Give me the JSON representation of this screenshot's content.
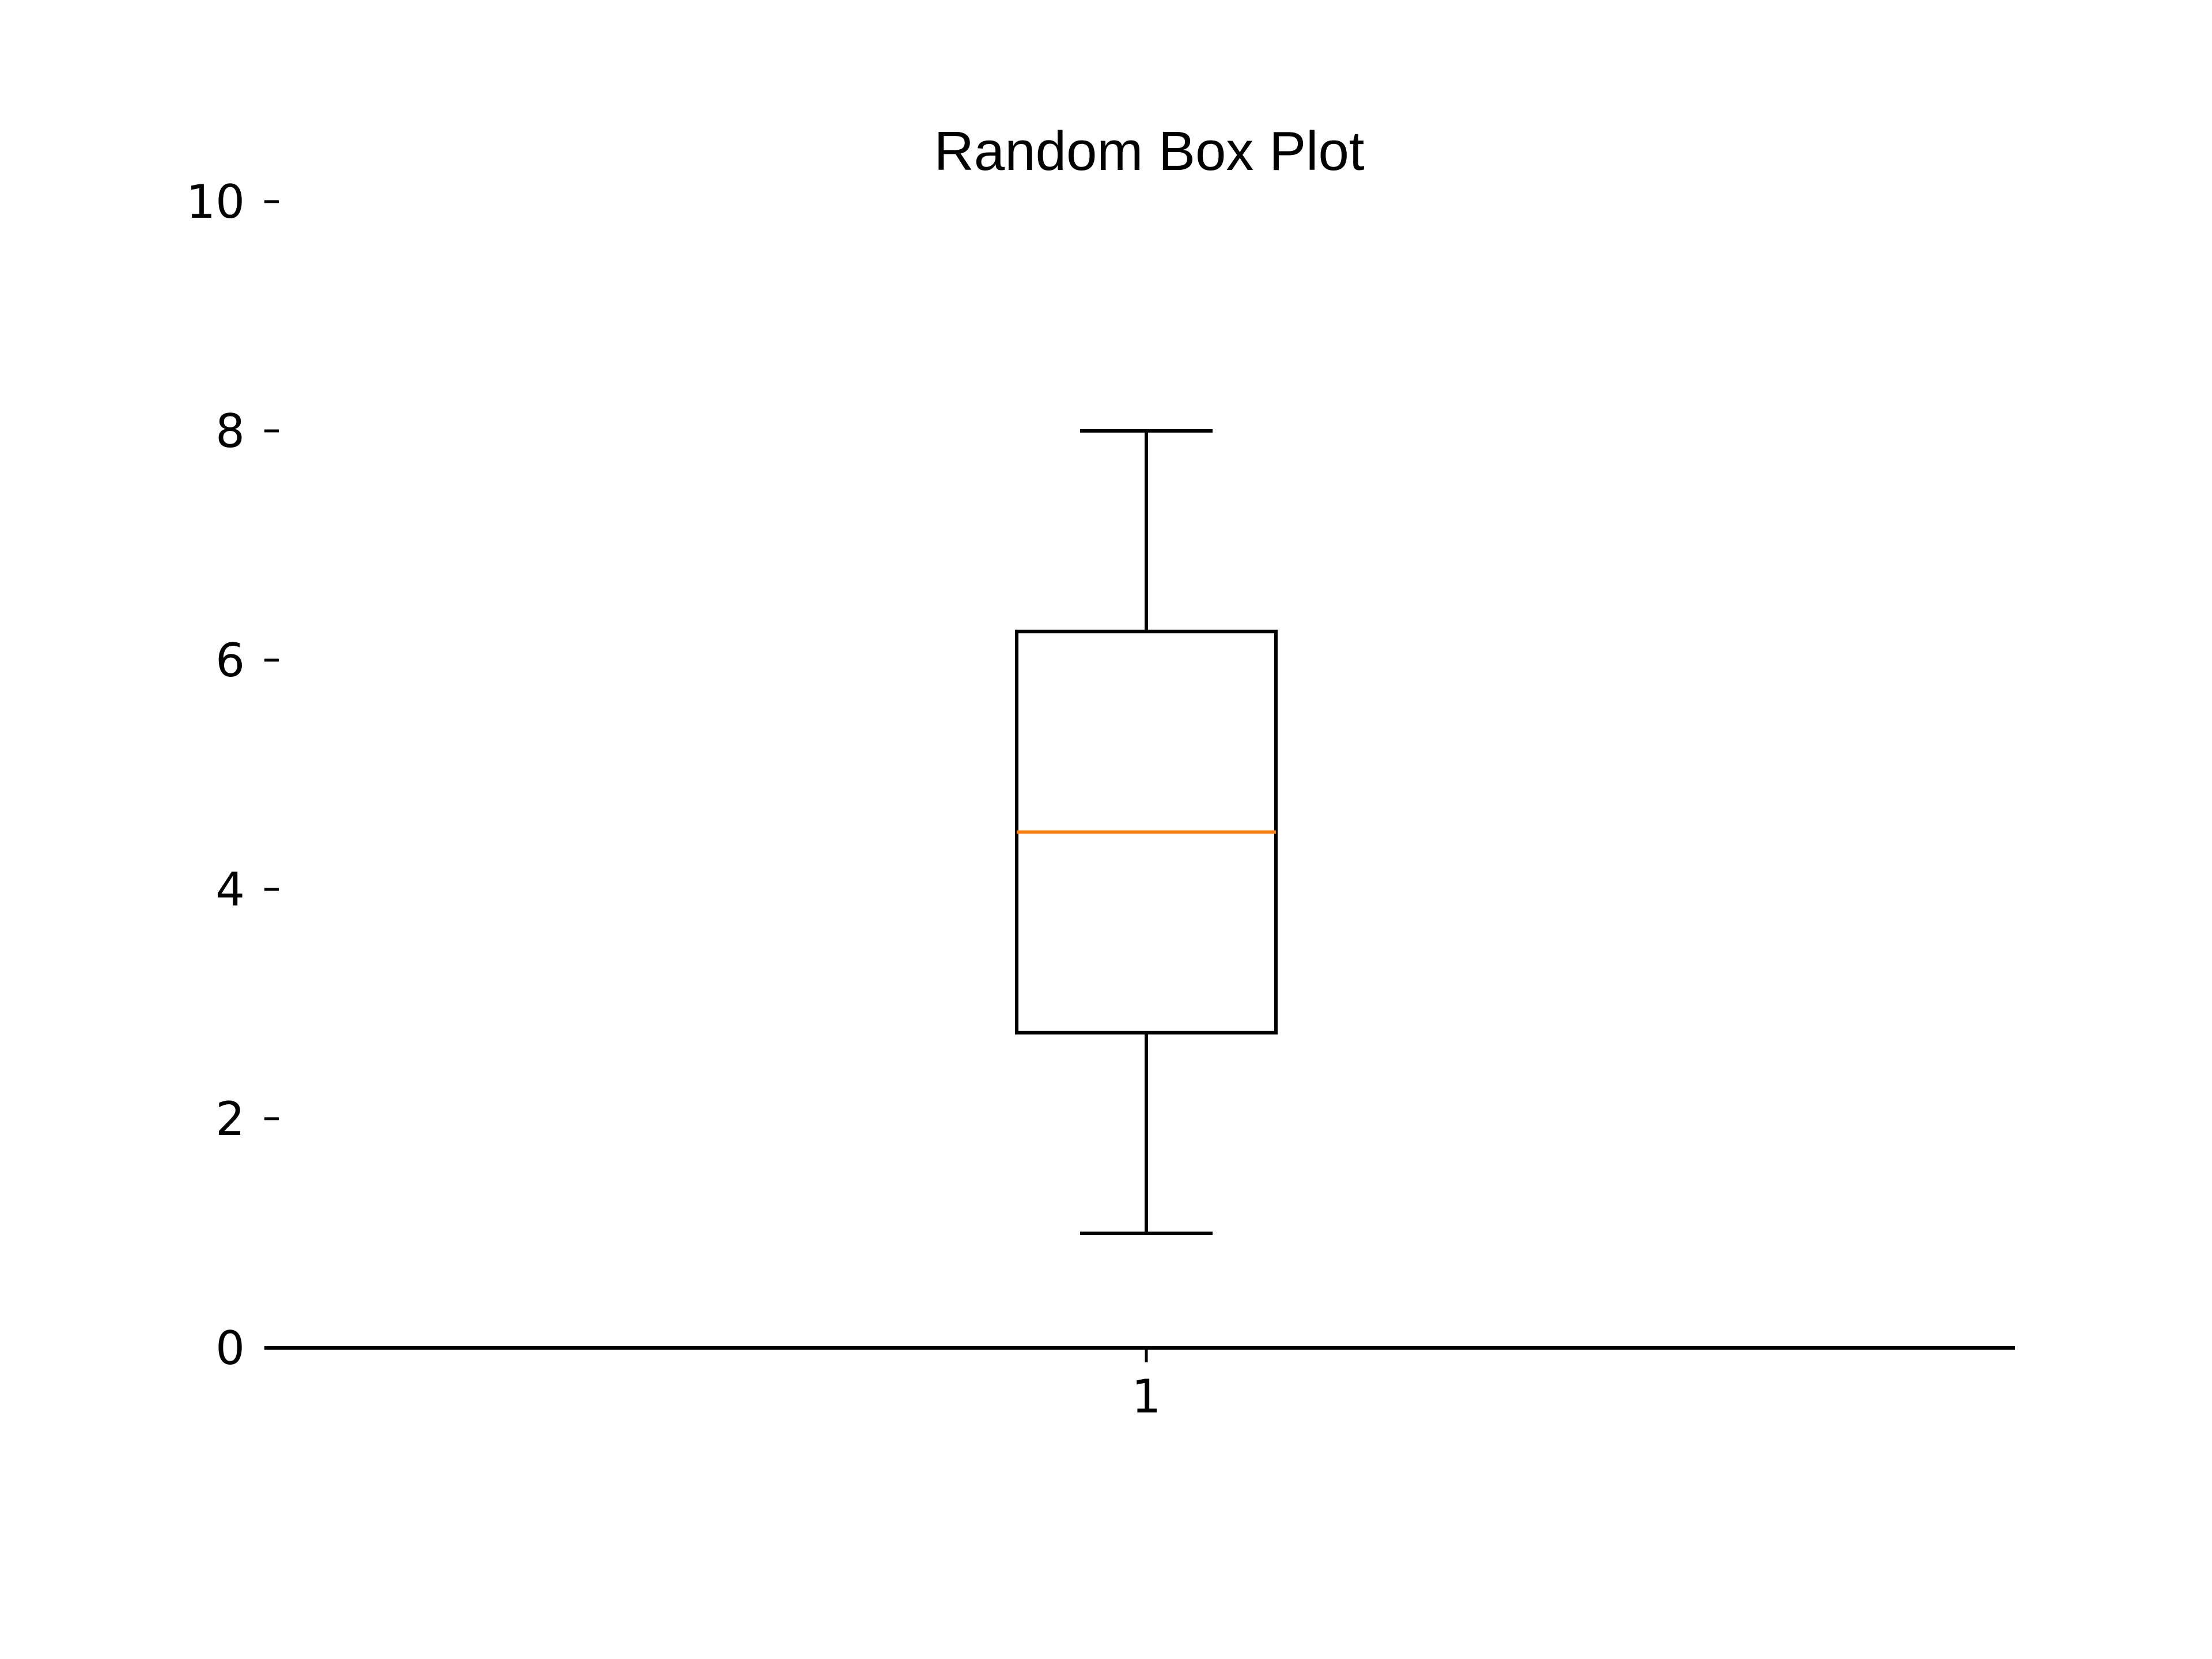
{
  "chart_data": {
    "type": "box",
    "title": "Random Box Plot",
    "xlabel": "",
    "ylabel": "",
    "ylim": [
      0,
      10
    ],
    "y_ticks": [
      0,
      2,
      4,
      6,
      8,
      10
    ],
    "x_ticks": [
      "1"
    ],
    "grid": false,
    "boxes": [
      {
        "category": "1",
        "whisker_low": 1,
        "q1": 2.75,
        "median": 4.5,
        "q3": 6.25,
        "whisker_high": 8
      }
    ],
    "colors": {
      "box": "#000000",
      "median": "#ff7f0e"
    }
  }
}
